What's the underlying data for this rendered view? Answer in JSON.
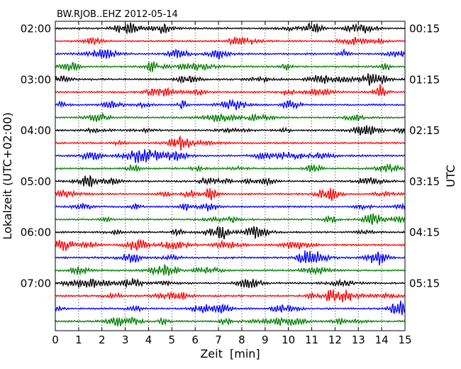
{
  "title": "BW.RJOB..EHZ 2012-05-14",
  "chart_data": {
    "type": "line",
    "subtype": "dayplot",
    "title": "BW.RJOB..EHZ 2012-05-14",
    "xlabel": "Zeit  [min]",
    "ylabel_left": "Lokalzeit (UTC+02:00)",
    "ylabel_right": "UTC",
    "xlim": [
      0,
      15
    ],
    "x_ticks": [
      0,
      1,
      2,
      3,
      4,
      5,
      6,
      7,
      8,
      9,
      10,
      11,
      12,
      13,
      14,
      15
    ],
    "left_tick_labels": [
      "02:00",
      "03:00",
      "04:00",
      "05:00",
      "06:00",
      "07:00"
    ],
    "right_tick_labels": [
      "00:15",
      "01:15",
      "02:15",
      "03:15",
      "04:15",
      "05:15"
    ],
    "trace_count": 24,
    "minutes_per_trace": 15,
    "traces_per_label": 4,
    "trace_colors": [
      "#000000",
      "#ff0000",
      "#0000ff",
      "#007f00"
    ],
    "grid": "vertical dotted at each minute"
  }
}
